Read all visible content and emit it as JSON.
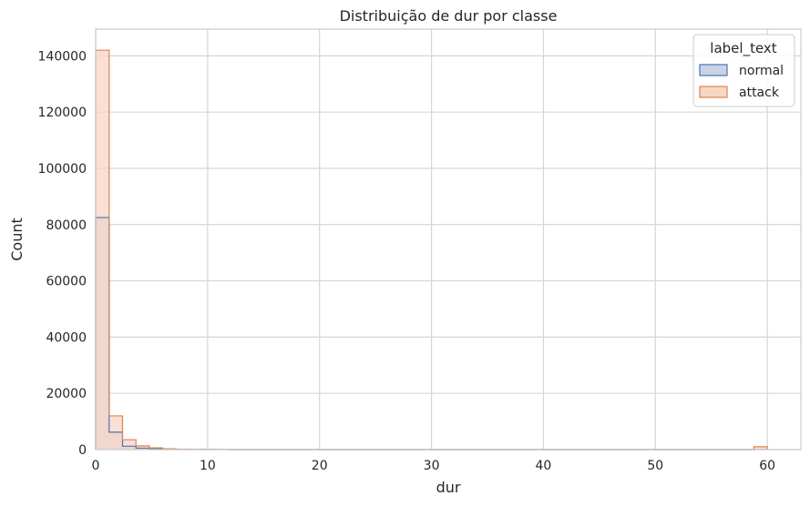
{
  "chart_data": {
    "type": "histogram",
    "title": "Distribuição de dur por classe",
    "xlabel": "dur",
    "ylabel": "Count",
    "xlim": [
      0,
      63
    ],
    "ylim": [
      0,
      149500
    ],
    "xticks": [
      0,
      10,
      20,
      30,
      40,
      50,
      60
    ],
    "yticks": [
      0,
      20000,
      40000,
      60000,
      80000,
      100000,
      120000,
      140000
    ],
    "grid": true,
    "legend": {
      "title": "label_text",
      "position": "top-right",
      "entries": [
        "normal",
        "attack"
      ]
    },
    "bins": [
      0,
      1.2,
      2.4,
      3.6,
      4.8,
      6.0,
      7.2,
      8.4,
      9.6,
      10.8,
      12.0,
      13.2,
      14.4,
      15.6,
      16.8,
      18.0,
      19.2,
      20.4,
      21.6,
      22.8,
      24.0,
      25.2,
      26.4,
      27.6,
      28.8,
      30.0,
      31.2,
      32.4,
      33.6,
      34.8,
      36.0,
      37.2,
      38.4,
      39.6,
      40.8,
      42.0,
      43.2,
      44.4,
      45.6,
      46.8,
      48.0,
      49.2,
      50.4,
      51.6,
      52.8,
      54.0,
      55.2,
      56.4,
      57.6,
      58.8,
      60.0
    ],
    "series": [
      {
        "name": "normal",
        "fill": "#c9d3e6",
        "edge": "#4c72b0",
        "values": [
          82500,
          6200,
          1200,
          500,
          300,
          200,
          100,
          50,
          30,
          20,
          10,
          10,
          10,
          10,
          10,
          10,
          10,
          10,
          10,
          10,
          10,
          10,
          10,
          10,
          10,
          10,
          10,
          10,
          10,
          10,
          10,
          10,
          10,
          10,
          10,
          10,
          10,
          10,
          10,
          10,
          10,
          10,
          10,
          10,
          10,
          10,
          10,
          10,
          10,
          20
        ]
      },
      {
        "name": "attack",
        "fill": "#f8d6c4",
        "edge": "#dd8452",
        "values": [
          142000,
          12000,
          3500,
          1300,
          600,
          300,
          100,
          50,
          30,
          20,
          10,
          10,
          10,
          10,
          10,
          10,
          10,
          10,
          10,
          10,
          10,
          10,
          10,
          10,
          10,
          10,
          10,
          10,
          10,
          10,
          10,
          10,
          10,
          10,
          10,
          10,
          10,
          10,
          10,
          10,
          10,
          10,
          10,
          10,
          10,
          10,
          10,
          10,
          10,
          1000
        ]
      }
    ]
  }
}
